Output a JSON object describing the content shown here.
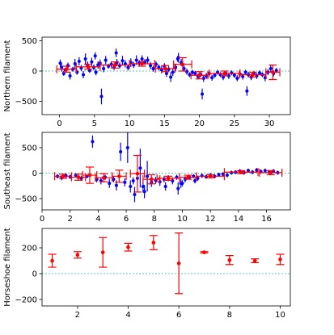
{
  "chart_data": [
    {
      "type": "scatter",
      "name": "northern",
      "ylabel": "Northern filament",
      "xlim": [
        -2.5,
        33
      ],
      "ylim": [
        -720,
        560
      ],
      "xticks": [
        0,
        5,
        10,
        15,
        20,
        25,
        30
      ],
      "yticks": [
        -500,
        0,
        500
      ],
      "zero_line": true,
      "points_color": "#0000ff",
      "bins_color": "#ff0000",
      "zero_color": "#20b2aa",
      "points": [
        [
          0.1,
          130,
          60
        ],
        [
          0.3,
          60,
          70
        ],
        [
          0.6,
          -40,
          40
        ],
        [
          0.8,
          20,
          30
        ],
        [
          1.2,
          90,
          50
        ],
        [
          1.5,
          -80,
          60
        ],
        [
          1.9,
          30,
          40
        ],
        [
          2.2,
          120,
          80
        ],
        [
          2.5,
          -20,
          40
        ],
        [
          2.8,
          160,
          70
        ],
        [
          3.1,
          50,
          50
        ],
        [
          3.4,
          -60,
          60
        ],
        [
          3.7,
          200,
          90
        ],
        [
          4.0,
          100,
          60
        ],
        [
          4.3,
          10,
          40
        ],
        [
          4.6,
          150,
          70
        ],
        [
          4.9,
          60,
          50
        ],
        [
          5.2,
          -20,
          50
        ],
        [
          5.5,
          100,
          60
        ],
        [
          5.8,
          130,
          60
        ],
        [
          6.0,
          -420,
          130
        ],
        [
          6.3,
          40,
          60
        ],
        [
          6.6,
          180,
          70
        ],
        [
          7.0,
          80,
          40
        ],
        [
          7.4,
          110,
          50
        ],
        [
          7.8,
          60,
          40
        ],
        [
          8.2,
          140,
          60
        ],
        [
          8.6,
          90,
          50
        ],
        [
          9.0,
          170,
          80
        ],
        [
          9.4,
          120,
          60
        ],
        [
          9.8,
          60,
          50
        ],
        [
          10.2,
          140,
          70
        ],
        [
          10.6,
          100,
          50
        ],
        [
          11.0,
          180,
          80
        ],
        [
          11.4,
          130,
          50
        ],
        [
          11.8,
          200,
          60
        ],
        [
          12.2,
          150,
          50
        ],
        [
          12.6,
          180,
          60
        ],
        [
          13.0,
          90,
          60
        ],
        [
          13.4,
          40,
          50
        ],
        [
          13.8,
          110,
          50
        ],
        [
          14.2,
          60,
          50
        ],
        [
          14.6,
          20,
          60
        ],
        [
          15.0,
          80,
          50
        ],
        [
          15.3,
          -40,
          60
        ],
        [
          15.6,
          30,
          50
        ],
        [
          15.9,
          -100,
          80
        ],
        [
          16.2,
          -20,
          60
        ],
        [
          16.6,
          60,
          60
        ],
        [
          17.0,
          220,
          80
        ],
        [
          17.4,
          140,
          60
        ],
        [
          17.8,
          40,
          50
        ],
        [
          18.2,
          -10,
          50
        ],
        [
          18.6,
          -60,
          40
        ],
        [
          19.0,
          -20,
          40
        ],
        [
          19.4,
          -40,
          40
        ],
        [
          19.8,
          -90,
          50
        ],
        [
          20.2,
          -60,
          40
        ],
        [
          20.6,
          -120,
          60
        ],
        [
          21.0,
          -80,
          50
        ],
        [
          21.4,
          -40,
          40
        ],
        [
          21.8,
          -110,
          50
        ],
        [
          22.2,
          -70,
          40
        ],
        [
          22.6,
          -20,
          40
        ],
        [
          23.0,
          -60,
          40
        ],
        [
          23.4,
          -100,
          50
        ],
        [
          23.8,
          -40,
          40
        ],
        [
          24.2,
          -80,
          50
        ],
        [
          24.6,
          -30,
          40
        ],
        [
          25.0,
          -70,
          40
        ],
        [
          25.4,
          -120,
          50
        ],
        [
          25.8,
          -50,
          40
        ],
        [
          26.2,
          -90,
          50
        ],
        [
          26.6,
          -20,
          40
        ],
        [
          27.0,
          -60,
          40
        ],
        [
          27.4,
          -100,
          50
        ],
        [
          27.8,
          -40,
          40
        ],
        [
          28.2,
          -80,
          50
        ],
        [
          28.6,
          -30,
          40
        ],
        [
          29.0,
          -60,
          40
        ],
        [
          29.4,
          -110,
          60
        ],
        [
          29.8,
          -20,
          50
        ],
        [
          30.2,
          40,
          60
        ],
        [
          30.6,
          -40,
          50
        ],
        [
          31.0,
          10,
          40
        ],
        [
          5.1,
          250,
          60
        ],
        [
          20.4,
          -380,
          90
        ],
        [
          26.8,
          -330,
          80
        ],
        [
          8.1,
          300,
          70
        ],
        [
          16.9,
          200,
          50
        ]
      ],
      "bins": [
        {
          "x": 1.0,
          "y": 30,
          "xerr": 1.4,
          "yerr": 50
        },
        {
          "x": 4.1,
          "y": 70,
          "xerr": 1.7,
          "yerr": 40
        },
        {
          "x": 7.9,
          "y": 100,
          "xerr": 2.1,
          "yerr": 50
        },
        {
          "x": 11.8,
          "y": 120,
          "xerr": 1.8,
          "yerr": 40
        },
        {
          "x": 15.1,
          "y": 40,
          "xerr": 1.4,
          "yerr": 50
        },
        {
          "x": 17.6,
          "y": 110,
          "xerr": 1.3,
          "yerr": 110
        },
        {
          "x": 20.0,
          "y": -70,
          "xerr": 1.2,
          "yerr": 60
        },
        {
          "x": 23.6,
          "y": -40,
          "xerr": 2.2,
          "yerr": 40
        },
        {
          "x": 27.6,
          "y": -60,
          "xerr": 1.9,
          "yerr": 40
        },
        {
          "x": 30.5,
          "y": -20,
          "xerr": 1.0,
          "yerr": 120
        }
      ]
    },
    {
      "type": "scatter",
      "name": "southeast",
      "ylabel": "Southeast filament",
      "xlim": [
        0,
        17.7
      ],
      "ylim": [
        -720,
        800
      ],
      "xticks": [
        0,
        2,
        4,
        6,
        8,
        10,
        12,
        14,
        16
      ],
      "yticks": [
        -500,
        0,
        500
      ],
      "zero_line": true,
      "points_color": "#0000ff",
      "bins_color": "#ff0000",
      "zero_color": "#20b2aa",
      "points": [
        [
          1.1,
          -60,
          40
        ],
        [
          1.4,
          -90,
          50
        ],
        [
          1.7,
          -50,
          40
        ],
        [
          2.0,
          -70,
          40
        ],
        [
          2.4,
          -40,
          40
        ],
        [
          2.8,
          -100,
          50
        ],
        [
          3.2,
          -60,
          40
        ],
        [
          3.6,
          620,
          120
        ],
        [
          3.9,
          -120,
          60
        ],
        [
          4.2,
          -150,
          70
        ],
        [
          4.5,
          -80,
          50
        ],
        [
          4.8,
          -200,
          90
        ],
        [
          5.1,
          -120,
          60
        ],
        [
          5.3,
          -240,
          100
        ],
        [
          5.6,
          420,
          180
        ],
        [
          5.9,
          -180,
          80
        ],
        [
          6.1,
          500,
          300
        ],
        [
          6.3,
          -260,
          120
        ],
        [
          6.5,
          -150,
          70
        ],
        [
          6.8,
          -100,
          60
        ],
        [
          7.0,
          100,
          380
        ],
        [
          7.2,
          -260,
          120
        ],
        [
          7.5,
          -60,
          300
        ],
        [
          7.8,
          -180,
          90
        ],
        [
          8.1,
          -140,
          70
        ],
        [
          8.4,
          -170,
          80
        ],
        [
          8.7,
          -120,
          60
        ],
        [
          9.0,
          -100,
          60
        ],
        [
          9.3,
          -150,
          70
        ],
        [
          9.6,
          -80,
          50
        ],
        [
          9.9,
          -200,
          90
        ],
        [
          10.2,
          -120,
          60
        ],
        [
          10.5,
          -80,
          40
        ],
        [
          10.8,
          -60,
          40
        ],
        [
          11.1,
          -100,
          50
        ],
        [
          11.4,
          -50,
          40
        ],
        [
          11.7,
          -70,
          40
        ],
        [
          12.0,
          -40,
          40
        ],
        [
          12.3,
          -60,
          40
        ],
        [
          12.6,
          -30,
          40
        ],
        [
          12.9,
          -20,
          40
        ],
        [
          13.2,
          -40,
          40
        ],
        [
          13.5,
          10,
          40
        ],
        [
          13.8,
          20,
          40
        ],
        [
          14.1,
          40,
          40
        ],
        [
          14.4,
          10,
          40
        ],
        [
          14.7,
          50,
          40
        ],
        [
          15.0,
          20,
          40
        ],
        [
          15.3,
          60,
          40
        ],
        [
          15.6,
          30,
          40
        ],
        [
          15.9,
          50,
          40
        ],
        [
          16.2,
          20,
          40
        ],
        [
          16.5,
          40,
          40
        ],
        [
          16.8,
          10,
          40
        ],
        [
          6.6,
          -420,
          150
        ],
        [
          7.3,
          -360,
          130
        ],
        [
          9.7,
          -300,
          120
        ],
        [
          8.8,
          -260,
          80
        ],
        [
          10.0,
          -200,
          60
        ],
        [
          10.9,
          -150,
          50
        ]
      ],
      "bins": [
        {
          "x": 1.5,
          "y": -60,
          "xerr": 0.6,
          "yerr": 40
        },
        {
          "x": 2.6,
          "y": -80,
          "xerr": 0.5,
          "yerr": 60
        },
        {
          "x": 3.4,
          "y": -40,
          "xerr": 0.5,
          "yerr": 160
        },
        {
          "x": 4.4,
          "y": -90,
          "xerr": 0.6,
          "yerr": 80
        },
        {
          "x": 5.5,
          "y": -60,
          "xerr": 0.5,
          "yerr": 120
        },
        {
          "x": 6.8,
          "y": -10,
          "xerr": 0.5,
          "yerr": 360
        },
        {
          "x": 7.8,
          "y": -120,
          "xerr": 0.6,
          "yerr": 90
        },
        {
          "x": 9.0,
          "y": -100,
          "xerr": 0.8,
          "yerr": 40
        },
        {
          "x": 10.4,
          "y": -80,
          "xerr": 0.6,
          "yerr": 40
        },
        {
          "x": 12.0,
          "y": -60,
          "xerr": 1.0,
          "yerr": 30
        },
        {
          "x": 14.2,
          "y": 20,
          "xerr": 1.2,
          "yerr": 30
        },
        {
          "x": 16.3,
          "y": 10,
          "xerr": 0.8,
          "yerr": 40
        }
      ]
    },
    {
      "type": "scatter",
      "name": "horseshoe",
      "ylabel": "Horseshoe filament",
      "xlim": [
        0.6,
        10.4
      ],
      "ylim": [
        -250,
        350
      ],
      "xticks": [
        2,
        4,
        6,
        8,
        10
      ],
      "yticks": [
        -200,
        0,
        200
      ],
      "zero_line": true,
      "points_color": "#0000ff",
      "bins_color": "#ff0000",
      "zero_color": "#20b2aa",
      "points": [],
      "bins": [
        {
          "x": 1,
          "y": 100,
          "xerr": 0,
          "yerr": 50
        },
        {
          "x": 2,
          "y": 145,
          "xerr": 0,
          "yerr": 25
        },
        {
          "x": 3,
          "y": 165,
          "xerr": 0,
          "yerr": 115
        },
        {
          "x": 4,
          "y": 205,
          "xerr": 0,
          "yerr": 30
        },
        {
          "x": 5,
          "y": 240,
          "xerr": 0,
          "yerr": 55
        },
        {
          "x": 6,
          "y": 80,
          "xerr": 0,
          "yerr": 235
        },
        {
          "x": 7,
          "y": 165,
          "xerr": 0,
          "yerr": 5
        },
        {
          "x": 8,
          "y": 105,
          "xerr": 0,
          "yerr": 35
        },
        {
          "x": 9,
          "y": 100,
          "xerr": 0,
          "yerr": 15
        },
        {
          "x": 10,
          "y": 110,
          "xerr": 0,
          "yerr": 40
        }
      ]
    }
  ]
}
